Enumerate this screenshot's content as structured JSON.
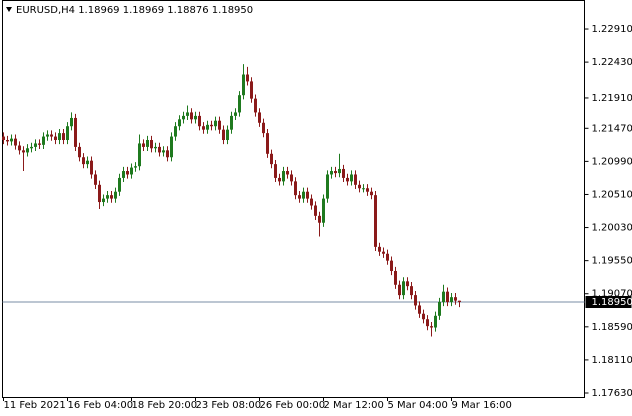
{
  "chart_data": {
    "type": "candlestick",
    "title": "EURUSD,H4  1.18969 1.18969 1.18876 1.18950",
    "categories": [
      "11 Feb 2021",
      null,
      null,
      null,
      null,
      null,
      null,
      null,
      null,
      null,
      null,
      null,
      null,
      null,
      null,
      null,
      "16 Feb 04:00",
      null,
      null,
      null,
      null,
      null,
      null,
      null,
      null,
      null,
      null,
      null,
      null,
      null,
      null,
      null,
      "18 Feb 20:00",
      null,
      null,
      null,
      null,
      null,
      null,
      null,
      null,
      null,
      null,
      null,
      null,
      null,
      null,
      null,
      "23 Feb 08:00",
      null,
      null,
      null,
      null,
      null,
      null,
      null,
      null,
      null,
      null,
      null,
      null,
      null,
      null,
      null,
      "26 Feb 00:00",
      null,
      null,
      null,
      null,
      null,
      null,
      null,
      null,
      null,
      null,
      null,
      null,
      null,
      null,
      null,
      "2 Mar 12:00",
      null,
      null,
      null,
      null,
      null,
      null,
      null,
      null,
      null,
      null,
      null,
      null,
      null,
      null,
      null,
      "5 Mar 04:00",
      null,
      null,
      null,
      null,
      null,
      null,
      null,
      null,
      null,
      null,
      null,
      null,
      null,
      null,
      null,
      "9 Mar 16:00",
      null,
      null
    ],
    "open": [
      1.2135,
      1.213,
      1.2128,
      1.2132,
      1.2122,
      1.2115,
      1.2112,
      1.2118,
      1.212,
      1.2125,
      1.2123,
      1.2135,
      1.2138,
      1.2135,
      1.213,
      1.214,
      1.213,
      1.215,
      1.2162,
      1.212,
      1.2105,
      1.2095,
      1.21,
      1.208,
      1.2065,
      1.204,
      1.2045,
      1.205,
      1.2045,
      1.2055,
      1.2075,
      1.2085,
      1.208,
      1.209,
      1.2092,
      1.2125,
      1.212,
      1.213,
      1.2118,
      1.212,
      1.2112,
      1.2115,
      1.2105,
      1.2135,
      1.215,
      1.216,
      1.2165,
      1.217,
      1.216,
      1.2165,
      1.215,
      1.2145,
      1.2152,
      1.215,
      1.2158,
      1.2145,
      1.213,
      1.2145,
      1.2165,
      1.217,
      1.2195,
      1.2225,
      1.2215,
      1.219,
      1.217,
      1.2155,
      1.214,
      1.211,
      1.2095,
      1.2075,
      1.207,
      1.2085,
      1.208,
      1.207,
      1.205,
      1.2045,
      1.2055,
      1.2045,
      1.2035,
      1.202,
      1.201,
      1.2045,
      1.208,
      1.2085,
      1.2082,
      1.2088,
      1.2075,
      1.207,
      1.208,
      1.2065,
      1.206,
      1.206,
      1.2055,
      1.205,
      1.1975,
      1.1968,
      1.1965,
      1.1955,
      1.194,
      1.192,
      1.1905,
      1.1925,
      1.1918,
      1.1905,
      1.189,
      1.1878,
      1.187,
      1.186,
      1.1858,
      1.1875,
      1.1895,
      1.191,
      1.1895,
      1.1902,
      1.18969
    ],
    "high": [
      1.2141,
      1.2136,
      1.2138,
      1.2138,
      1.2128,
      1.2121,
      1.2124,
      1.2126,
      1.2131,
      1.2131,
      1.2141,
      1.2144,
      1.2144,
      1.2141,
      1.2146,
      1.2146,
      1.2156,
      1.217,
      1.2168,
      1.2126,
      1.2111,
      1.2106,
      1.2106,
      1.2086,
      1.2071,
      1.2051,
      1.2056,
      1.2056,
      1.2061,
      1.2081,
      1.2091,
      1.2091,
      1.2096,
      1.2098,
      1.2138,
      1.2131,
      1.2136,
      1.2136,
      1.2126,
      1.2126,
      1.2121,
      1.2121,
      1.2141,
      1.2156,
      1.2166,
      1.2171,
      1.218,
      1.2176,
      1.2171,
      1.2171,
      1.2156,
      1.2158,
      1.2158,
      1.2164,
      1.2164,
      1.2151,
      1.2151,
      1.2171,
      1.2176,
      1.2201,
      1.224,
      1.2236,
      1.2221,
      1.2196,
      1.2176,
      1.2161,
      1.2146,
      1.2116,
      1.2101,
      1.2081,
      1.2091,
      1.2091,
      1.2086,
      1.2076,
      1.2056,
      1.2061,
      1.2061,
      1.2051,
      1.2041,
      1.2026,
      1.2051,
      1.2086,
      1.2091,
      1.2091,
      1.211,
      1.2094,
      1.2081,
      1.2086,
      1.2086,
      1.2071,
      1.2066,
      1.2066,
      1.2061,
      1.2056,
      1.1981,
      1.1974,
      1.1971,
      1.1961,
      1.1946,
      1.1926,
      1.1931,
      1.1931,
      1.1924,
      1.1911,
      1.1896,
      1.1884,
      1.1876,
      1.1866,
      1.1881,
      1.1901,
      1.192,
      1.1916,
      1.1908,
      1.1908,
      1.18969
    ],
    "low": [
      1.2124,
      1.2122,
      1.2122,
      1.2116,
      1.2109,
      1.2085,
      1.2106,
      1.2112,
      1.2114,
      1.2117,
      1.2117,
      1.2129,
      1.2129,
      1.2124,
      1.2124,
      1.2124,
      1.2124,
      1.2144,
      1.2114,
      1.2099,
      1.2089,
      1.2089,
      1.2074,
      1.2059,
      1.203,
      1.2034,
      1.2039,
      1.2039,
      1.2039,
      1.2049,
      1.2069,
      1.2074,
      1.2074,
      1.2084,
      1.2086,
      1.2114,
      1.2114,
      1.2112,
      1.2112,
      1.2106,
      1.2106,
      1.2099,
      1.2099,
      1.2129,
      1.2144,
      1.2154,
      1.2159,
      1.2154,
      1.2154,
      1.2144,
      1.2139,
      1.2139,
      1.2144,
      1.2144,
      1.2139,
      1.2124,
      1.2124,
      1.2139,
      1.2159,
      1.2164,
      1.2189,
      1.2209,
      1.2184,
      1.2164,
      1.2149,
      1.2134,
      1.2104,
      1.2089,
      1.2069,
      1.2064,
      1.2064,
      1.2074,
      1.2064,
      1.2044,
      1.2039,
      1.2039,
      1.2039,
      1.2029,
      1.2014,
      1.199,
      1.2004,
      1.2039,
      1.2074,
      1.2076,
      1.2076,
      1.2069,
      1.2064,
      1.2064,
      1.2059,
      1.2054,
      1.2054,
      1.2049,
      1.2044,
      1.1969,
      1.1962,
      1.1959,
      1.1949,
      1.1934,
      1.1914,
      1.1899,
      1.1899,
      1.1912,
      1.1899,
      1.1884,
      1.1872,
      1.1864,
      1.1854,
      1.1845,
      1.1852,
      1.1869,
      1.1889,
      1.1889,
      1.1889,
      1.1891,
      1.18876
    ],
    "close": [
      1.213,
      1.2128,
      1.2132,
      1.2122,
      1.2115,
      1.2112,
      1.2118,
      1.212,
      1.2125,
      1.2123,
      1.2135,
      1.2138,
      1.2135,
      1.213,
      1.214,
      1.213,
      1.215,
      1.2162,
      1.212,
      1.2105,
      1.2095,
      1.21,
      1.208,
      1.2065,
      1.204,
      1.2045,
      1.205,
      1.2045,
      1.2055,
      1.2075,
      1.2085,
      1.208,
      1.209,
      1.2092,
      1.2125,
      1.212,
      1.213,
      1.2118,
      1.212,
      1.2112,
      1.2115,
      1.2105,
      1.2135,
      1.215,
      1.216,
      1.2165,
      1.217,
      1.216,
      1.2165,
      1.215,
      1.2145,
      1.2152,
      1.215,
      1.2158,
      1.2145,
      1.213,
      1.2145,
      1.2165,
      1.217,
      1.2195,
      1.2225,
      1.2215,
      1.219,
      1.217,
      1.2155,
      1.214,
      1.211,
      1.2095,
      1.2075,
      1.207,
      1.2085,
      1.208,
      1.207,
      1.205,
      1.2045,
      1.2055,
      1.2045,
      1.2035,
      1.202,
      1.201,
      1.2045,
      1.208,
      1.2085,
      1.2082,
      1.2088,
      1.2075,
      1.207,
      1.208,
      1.2065,
      1.206,
      1.206,
      1.2055,
      1.205,
      1.1975,
      1.1968,
      1.1965,
      1.1955,
      1.194,
      1.192,
      1.1905,
      1.1925,
      1.1918,
      1.1905,
      1.189,
      1.1878,
      1.187,
      1.186,
      1.1858,
      1.1875,
      1.1895,
      1.191,
      1.1895,
      1.1902,
      1.1897,
      1.1895
    ],
    "up_color": "#1f7a1f",
    "down_color": "#8b1a1a",
    "current_price": {
      "value": 1.1895,
      "label": "1.18950"
    },
    "ylim": [
      1.17572,
      1.23331
    ],
    "yticks": [
      {
        "value": 1.2291,
        "label": "1.22910"
      },
      {
        "value": 1.2243,
        "label": "1.22430"
      },
      {
        "value": 1.2191,
        "label": "1.21910"
      },
      {
        "value": 1.2147,
        "label": "1.21470"
      },
      {
        "value": 1.2099,
        "label": "1.20990"
      },
      {
        "value": 1.2051,
        "label": "1.20510"
      },
      {
        "value": 1.2003,
        "label": "1.20030"
      },
      {
        "value": 1.1955,
        "label": "1.19550"
      },
      {
        "value": 1.1907,
        "label": "1.19070"
      },
      {
        "value": 1.1859,
        "label": "1.18590"
      },
      {
        "value": 1.1811,
        "label": "1.18110"
      },
      {
        "value": 1.1763,
        "label": "1.17630"
      }
    ]
  }
}
